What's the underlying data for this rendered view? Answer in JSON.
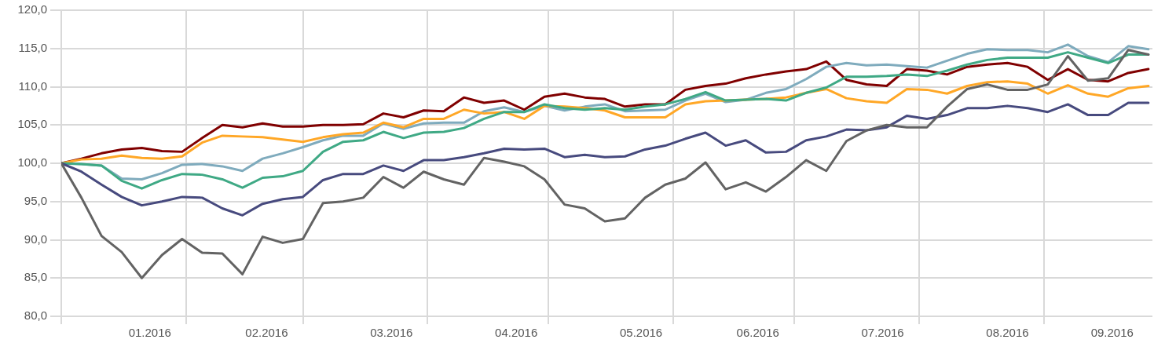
{
  "chart_data": {
    "type": "line",
    "x": [
      "2016-01-01",
      "2016-01-06",
      "2016-01-11",
      "2016-01-16",
      "2016-01-21",
      "2016-01-26",
      "2016-01-31",
      "2016-02-05",
      "2016-02-10",
      "2016-02-15",
      "2016-02-20",
      "2016-02-25",
      "2016-03-01",
      "2016-03-06",
      "2016-03-11",
      "2016-03-16",
      "2016-03-21",
      "2016-03-26",
      "2016-03-31",
      "2016-04-05",
      "2016-04-10",
      "2016-04-15",
      "2016-04-20",
      "2016-04-25",
      "2016-04-30",
      "2016-05-05",
      "2016-05-10",
      "2016-05-15",
      "2016-05-20",
      "2016-05-25",
      "2016-05-30",
      "2016-06-04",
      "2016-06-09",
      "2016-06-14",
      "2016-06-19",
      "2016-06-24",
      "2016-06-29",
      "2016-07-04",
      "2016-07-09",
      "2016-07-14",
      "2016-07-19",
      "2016-07-24",
      "2016-07-29",
      "2016-08-03",
      "2016-08-08",
      "2016-08-13",
      "2016-08-18",
      "2016-08-23",
      "2016-08-28",
      "2016-09-02",
      "2016-09-07",
      "2016-09-12",
      "2016-09-17",
      "2016-09-22",
      "2016-09-27"
    ],
    "series": [
      {
        "color": "#636363",
        "values": [
          100,
          95.5,
          90.5,
          88.4,
          85.0,
          88.0,
          90.1,
          88.3,
          88.2,
          85.5,
          90.4,
          89.6,
          90.1,
          94.8,
          95.0,
          95.5,
          98.2,
          96.8,
          98.9,
          97.9,
          97.2,
          100.7,
          100.2,
          99.6,
          97.9,
          94.6,
          94.1,
          92.4,
          92.8,
          95.5,
          97.2,
          98.0,
          100.1,
          96.6,
          97.5,
          96.3,
          98.2,
          100.4,
          99.0,
          102.9,
          104.3,
          105.0,
          104.7,
          104.7,
          107.4,
          109.7,
          110.3,
          109.6,
          109.6,
          110.3,
          114.0,
          110.8,
          111.1,
          114.8,
          114.2
        ]
      },
      {
        "color": "#474a7e",
        "values": [
          100,
          98.9,
          97.2,
          95.6,
          94.5,
          95.0,
          95.6,
          95.5,
          94.1,
          93.2,
          94.7,
          95.3,
          95.6,
          97.8,
          98.6,
          98.6,
          99.7,
          99.0,
          100.4,
          100.4,
          100.8,
          101.3,
          101.9,
          101.8,
          101.9,
          100.8,
          101.1,
          100.8,
          100.9,
          101.8,
          102.3,
          103.2,
          104.0,
          102.3,
          103.0,
          101.4,
          101.5,
          103.0,
          103.5,
          104.4,
          104.3,
          104.7,
          106.2,
          105.8,
          106.3,
          107.2,
          107.2,
          107.5,
          107.2,
          106.7,
          107.7,
          106.3,
          106.3,
          107.9,
          107.9
        ]
      },
      {
        "color": "#3fa985",
        "values": [
          100,
          99.9,
          99.7,
          97.7,
          96.7,
          97.8,
          98.6,
          98.5,
          97.9,
          96.8,
          98.1,
          98.3,
          99.0,
          101.5,
          102.8,
          103.0,
          104.1,
          103.3,
          104.0,
          104.1,
          104.6,
          105.8,
          106.7,
          106.7,
          107.7,
          107.2,
          107.0,
          107.2,
          107.0,
          107.4,
          107.7,
          108.4,
          109.3,
          108.2,
          108.3,
          108.4,
          108.2,
          109.2,
          109.9,
          111.3,
          111.3,
          111.4,
          111.6,
          111.4,
          112.1,
          112.9,
          113.5,
          113.8,
          113.8,
          113.8,
          114.5,
          113.8,
          113.1,
          114.2,
          114.2
        ]
      },
      {
        "color": "#ffa726",
        "values": [
          100,
          100.5,
          100.6,
          101.0,
          100.7,
          100.6,
          100.9,
          102.7,
          103.6,
          103.5,
          103.4,
          103.1,
          102.8,
          103.4,
          103.8,
          104.0,
          105.3,
          104.7,
          105.8,
          105.8,
          107.0,
          106.5,
          106.7,
          105.8,
          107.5,
          107.4,
          107.2,
          106.9,
          106.0,
          106.0,
          106.0,
          107.7,
          108.1,
          108.2,
          108.3,
          108.4,
          108.6,
          109.2,
          109.7,
          108.5,
          108.1,
          107.9,
          109.7,
          109.6,
          109.1,
          110.1,
          110.6,
          110.7,
          110.4,
          109.1,
          110.2,
          109.1,
          108.7,
          109.8,
          110.1
        ]
      },
      {
        "color": "#7fabbd",
        "values": [
          100,
          99.9,
          99.7,
          98.0,
          97.9,
          98.7,
          99.8,
          99.9,
          99.6,
          99.0,
          100.6,
          101.3,
          102.1,
          103.0,
          103.6,
          103.6,
          105.2,
          104.5,
          105.2,
          105.3,
          105.3,
          106.8,
          107.3,
          106.7,
          107.5,
          106.9,
          107.4,
          107.7,
          106.8,
          106.9,
          107.0,
          108.2,
          109.1,
          108.0,
          108.3,
          109.2,
          109.7,
          111.0,
          112.6,
          113.1,
          112.8,
          112.9,
          112.7,
          112.5,
          113.4,
          114.3,
          114.9,
          114.8,
          114.8,
          114.5,
          115.5,
          114.0,
          113.2,
          115.3,
          114.9
        ]
      },
      {
        "color": "#800000",
        "values": [
          100,
          100.6,
          101.3,
          101.8,
          102.0,
          101.6,
          101.5,
          103.3,
          105.0,
          104.7,
          105.2,
          104.8,
          104.8,
          105.0,
          105.0,
          105.1,
          106.5,
          106.0,
          106.9,
          106.8,
          108.6,
          107.9,
          108.2,
          107.0,
          108.7,
          109.1,
          108.6,
          108.4,
          107.4,
          107.7,
          107.7,
          109.6,
          110.1,
          110.4,
          111.1,
          111.6,
          112.0,
          112.3,
          113.3,
          110.9,
          110.3,
          110.1,
          112.3,
          112.1,
          111.6,
          112.6,
          112.9,
          113.1,
          112.6,
          110.9,
          112.3,
          110.9,
          110.7,
          111.8,
          112.3
        ]
      }
    ],
    "xlim": [
      "2016-01-01",
      "2016-09-28"
    ],
    "xticks": [
      {
        "value": "2016-01-01",
        "label": null
      },
      {
        "value": "2016-01-23",
        "label": "01.2016"
      },
      {
        "value": "2016-02-01",
        "label": null
      },
      {
        "value": "2016-02-21",
        "label": "02.2016"
      },
      {
        "value": "2016-03-01",
        "label": null
      },
      {
        "value": "2016-03-23",
        "label": "03.2016"
      },
      {
        "value": "2016-04-01",
        "label": null
      },
      {
        "value": "2016-04-23",
        "label": "04.2016"
      },
      {
        "value": "2016-05-01",
        "label": null
      },
      {
        "value": "2016-05-24",
        "label": "05.2016"
      },
      {
        "value": "2016-06-01",
        "label": null
      },
      {
        "value": "2016-06-22",
        "label": "06.2016"
      },
      {
        "value": "2016-07-01",
        "label": null
      },
      {
        "value": "2016-07-23",
        "label": "07.2016"
      },
      {
        "value": "2016-08-01",
        "label": null
      },
      {
        "value": "2016-08-23",
        "label": "08.2016"
      },
      {
        "value": "2016-09-01",
        "label": null
      },
      {
        "value": "2016-09-18",
        "label": "09.2016"
      }
    ],
    "ylim": [
      80,
      120
    ],
    "yticks": [
      {
        "value": 80,
        "label": "80,0"
      },
      {
        "value": 85,
        "label": "85,0"
      },
      {
        "value": 90,
        "label": "90,0"
      },
      {
        "value": 95,
        "label": "95,0"
      },
      {
        "value": 100,
        "label": "100,0"
      },
      {
        "value": 105,
        "label": "105,0"
      },
      {
        "value": 110,
        "label": "110,0"
      },
      {
        "value": 115,
        "label": "115,0"
      },
      {
        "value": 120,
        "label": "120,0"
      }
    ],
    "grid": true
  }
}
